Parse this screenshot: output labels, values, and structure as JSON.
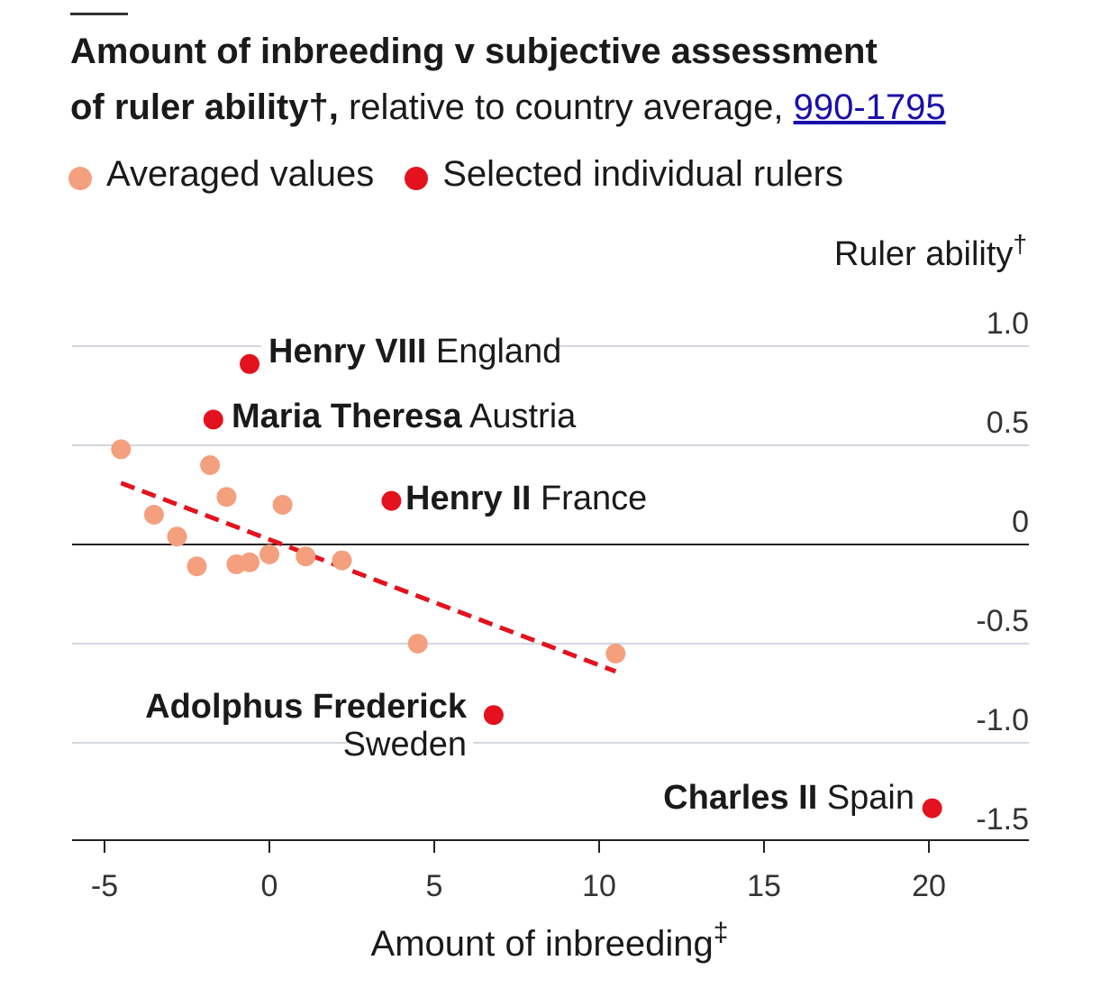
{
  "title": {
    "line1": "Amount of inbreeding v subjective assessment",
    "line2_bold": "of ruler ability",
    "line2_dagger": "†,",
    "line2_rest": " relative to country average, ",
    "link_text": "990-1795"
  },
  "legend": [
    {
      "label": "Averaged values",
      "color": "#f4a07f"
    },
    {
      "label": "Selected individual rulers",
      "color": "#e3121e"
    }
  ],
  "chart_data": {
    "type": "scatter",
    "title": "Amount of inbreeding v subjective assessment of ruler ability†, relative to country average, 990-1795",
    "xlabel": "Amount of inbreeding",
    "xlabel_mark": "‡",
    "ylabel": "Ruler ability",
    "ylabel_mark": "†",
    "xlim": [
      -5,
      23
    ],
    "ylim": [
      -1.5,
      1.0
    ],
    "x_ticks": [
      -5,
      0,
      5,
      10,
      15,
      20
    ],
    "x_tick_labels": [
      "-5",
      "0",
      "5",
      "10",
      "15",
      "20"
    ],
    "y_ticks": [
      1.0,
      0.5,
      0,
      -0.5,
      -1.0,
      -1.5
    ],
    "y_tick_labels": [
      "1.0",
      "0.5",
      "0",
      "-0.5",
      "-1.0",
      "-1.5"
    ],
    "grid": "horizontal",
    "legend_position": "top-left",
    "series": [
      {
        "name": "Averaged values",
        "color": "#f4a07f",
        "points": [
          {
            "x": -4.5,
            "y": 0.48
          },
          {
            "x": -1.8,
            "y": 0.4
          },
          {
            "x": -1.3,
            "y": 0.24
          },
          {
            "x": 0.4,
            "y": 0.2
          },
          {
            "x": -3.5,
            "y": 0.15
          },
          {
            "x": -2.8,
            "y": 0.04
          },
          {
            "x": -2.2,
            "y": -0.11
          },
          {
            "x": -1.0,
            "y": -0.1
          },
          {
            "x": -0.6,
            "y": -0.09
          },
          {
            "x": 0.0,
            "y": -0.05
          },
          {
            "x": 1.1,
            "y": -0.06
          },
          {
            "x": 2.2,
            "y": -0.08
          },
          {
            "x": 4.5,
            "y": -0.5
          },
          {
            "x": 10.5,
            "y": -0.55
          }
        ]
      },
      {
        "name": "Selected individual rulers",
        "color": "#e3121e",
        "points": [
          {
            "x": -0.6,
            "y": 0.91,
            "name": "Henry VIII",
            "country": "England"
          },
          {
            "x": -1.7,
            "y": 0.63,
            "name": "Maria Theresa",
            "country": "Austria"
          },
          {
            "x": 3.7,
            "y": 0.22,
            "name": "Henry II",
            "country": "France"
          },
          {
            "x": 6.8,
            "y": -0.86,
            "name": "Adolphus Frederick",
            "country": "Sweden"
          },
          {
            "x": 20.1,
            "y": -1.33,
            "name": "Charles II",
            "country": "Spain"
          }
        ]
      }
    ],
    "trendline": {
      "x": [
        -4.5,
        10.5
      ],
      "y": [
        0.31,
        -0.64
      ],
      "color": "#e3121e",
      "style": "dashed"
    }
  }
}
